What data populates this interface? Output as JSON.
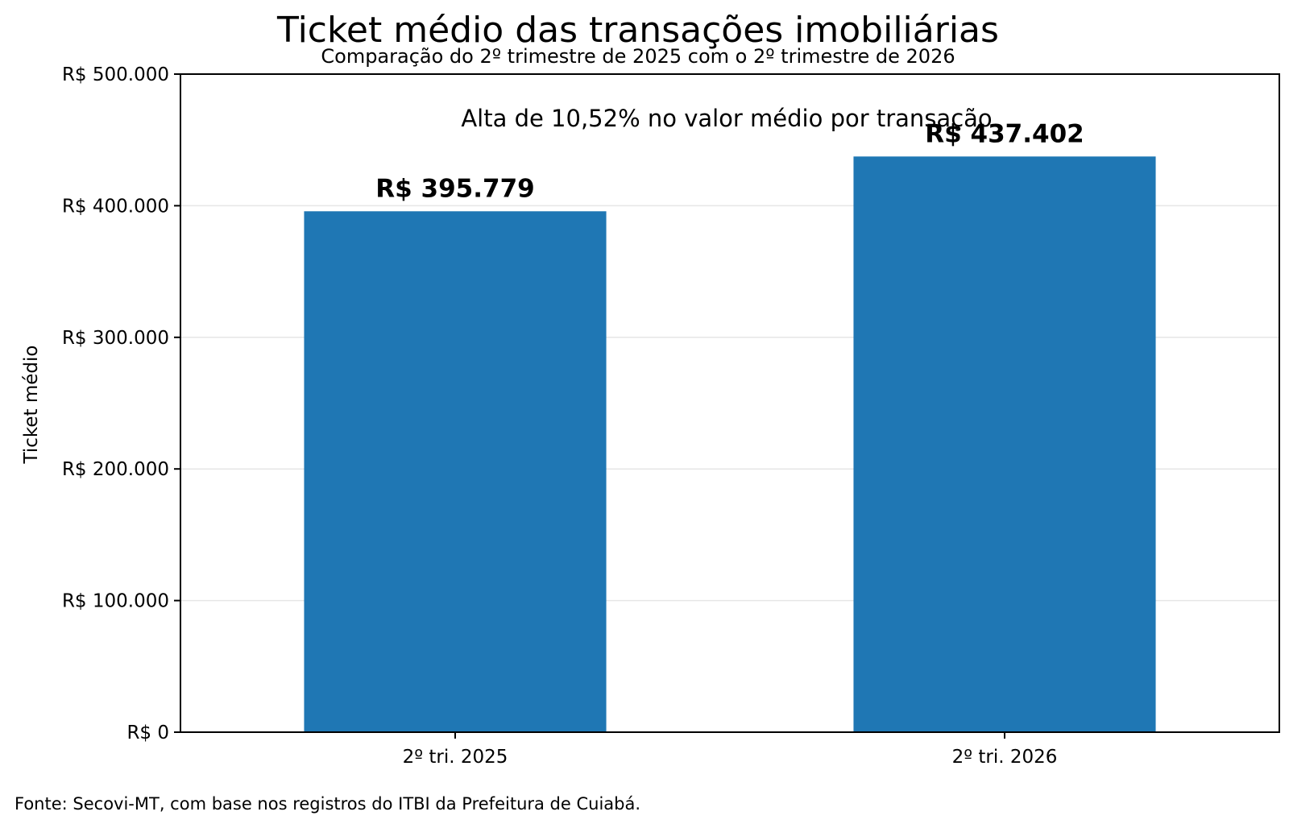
{
  "chart_data": {
    "type": "bar",
    "title": "Ticket médio das transações imobiliárias",
    "subtitle": "Comparação do 2º trimestre de 2025 com o 2º trimestre de 2026",
    "ylabel": "Ticket médio",
    "xlabel": "",
    "categories": [
      "2º tri. 2025",
      "2º tri. 2026"
    ],
    "values": [
      395779,
      437402
    ],
    "data_labels": [
      "R$ 395.779",
      "R$ 437.402"
    ],
    "ylim": [
      0,
      500000
    ],
    "yticks": [
      0,
      100000,
      200000,
      300000,
      400000,
      500000
    ],
    "ytick_labels": [
      "R$ 0",
      "R$ 100.000",
      "R$ 200.000",
      "R$ 300.000",
      "R$ 400.000",
      "R$ 500.000"
    ],
    "annotation": "Alta de 10,52% no valor médio por transação",
    "grid": "horizontal",
    "legend": "none",
    "bar_color": "#1f77b4",
    "source": "Fonte: Secovi-MT, com base nos registros do ITBI da Prefeitura de Cuiabá."
  }
}
